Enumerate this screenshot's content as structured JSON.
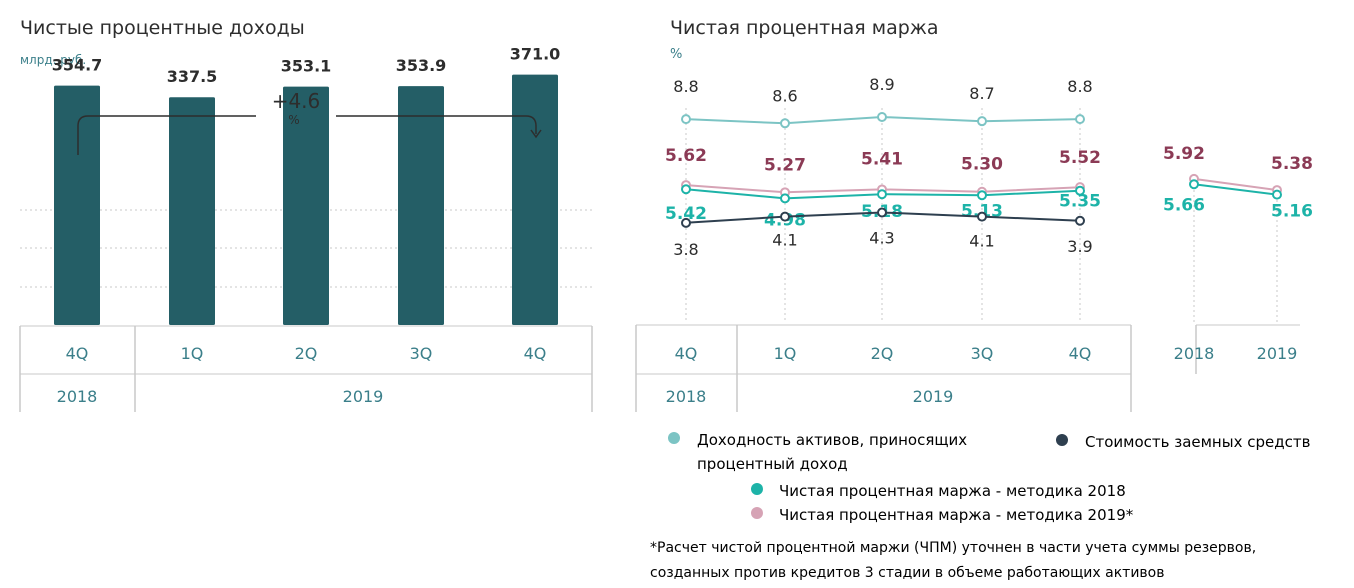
{
  "colors": {
    "bar": "#245e66",
    "yield": "#7cc4c4",
    "nim2018": "#1db3a8",
    "nim2019": "#d6a3b5",
    "nim2019_label": "#8b3a55",
    "cost": "#2e3f4f",
    "grid": "#c8c8c8",
    "tick_teal": "#3b7f8a",
    "text": "#2d2d2d"
  },
  "chart_data": [
    {
      "type": "bar",
      "title": "Чистые процентные доходы",
      "subtitle": "млрд. руб.",
      "categories": [
        "4Q",
        "1Q",
        "2Q",
        "3Q",
        "4Q"
      ],
      "years": [
        "2018",
        "2019"
      ],
      "values": [
        354.7,
        337.5,
        353.1,
        353.9,
        371.0
      ],
      "value_labels": [
        "354.7",
        "337.5",
        "353.1",
        "353.9",
        "371.0"
      ],
      "growth_annotation": {
        "value": "+4.6",
        "unit": "%"
      },
      "ylim": [
        0,
        400
      ]
    },
    {
      "type": "line",
      "title": "Чистая процентная маржа",
      "subtitle": "%",
      "categories": [
        "4Q",
        "1Q",
        "2Q",
        "3Q",
        "4Q"
      ],
      "years": [
        "2018",
        "2019"
      ],
      "annual_categories": [
        "2018",
        "2019"
      ],
      "series": [
        {
          "key": "yield",
          "name": "Доходность активов, приносящих процентный доход",
          "values": [
            8.8,
            8.6,
            8.9,
            8.7,
            8.8
          ],
          "labels": [
            "8.8",
            "8.6",
            "8.9",
            "8.7",
            "8.8"
          ]
        },
        {
          "key": "nim2019",
          "name": "Чистая процентная маржа - методика 2019*",
          "values": [
            5.62,
            5.27,
            5.41,
            5.3,
            5.52
          ],
          "labels": [
            "5.62",
            "5.27",
            "5.41",
            "5.30",
            "5.52"
          ],
          "annual": [
            5.92,
            5.38
          ],
          "annual_labels": [
            "5.92",
            "5.38"
          ]
        },
        {
          "key": "nim2018",
          "name": "Чистая процентная маржа - методика 2018",
          "values": [
            5.42,
            4.98,
            5.18,
            5.13,
            5.35
          ],
          "labels": [
            "5.42",
            "4.98",
            "5.18",
            "5.13",
            "5.35"
          ],
          "annual": [
            5.66,
            5.16
          ],
          "annual_labels": [
            "5.66",
            "5.16"
          ]
        },
        {
          "key": "cost",
          "name": "Стоимость заемных средств",
          "values": [
            3.8,
            4.1,
            4.3,
            4.1,
            3.9
          ],
          "labels": [
            "3.8",
            "4.1",
            "4.3",
            "4.1",
            "3.9"
          ]
        }
      ]
    }
  ],
  "footnote": {
    "line1": "*Расчет чистой процентной маржи (ЧПМ) уточнен в части учета суммы резервов,",
    "line2": "созданных против кредитов 3 стадии в объеме работающих активов"
  }
}
